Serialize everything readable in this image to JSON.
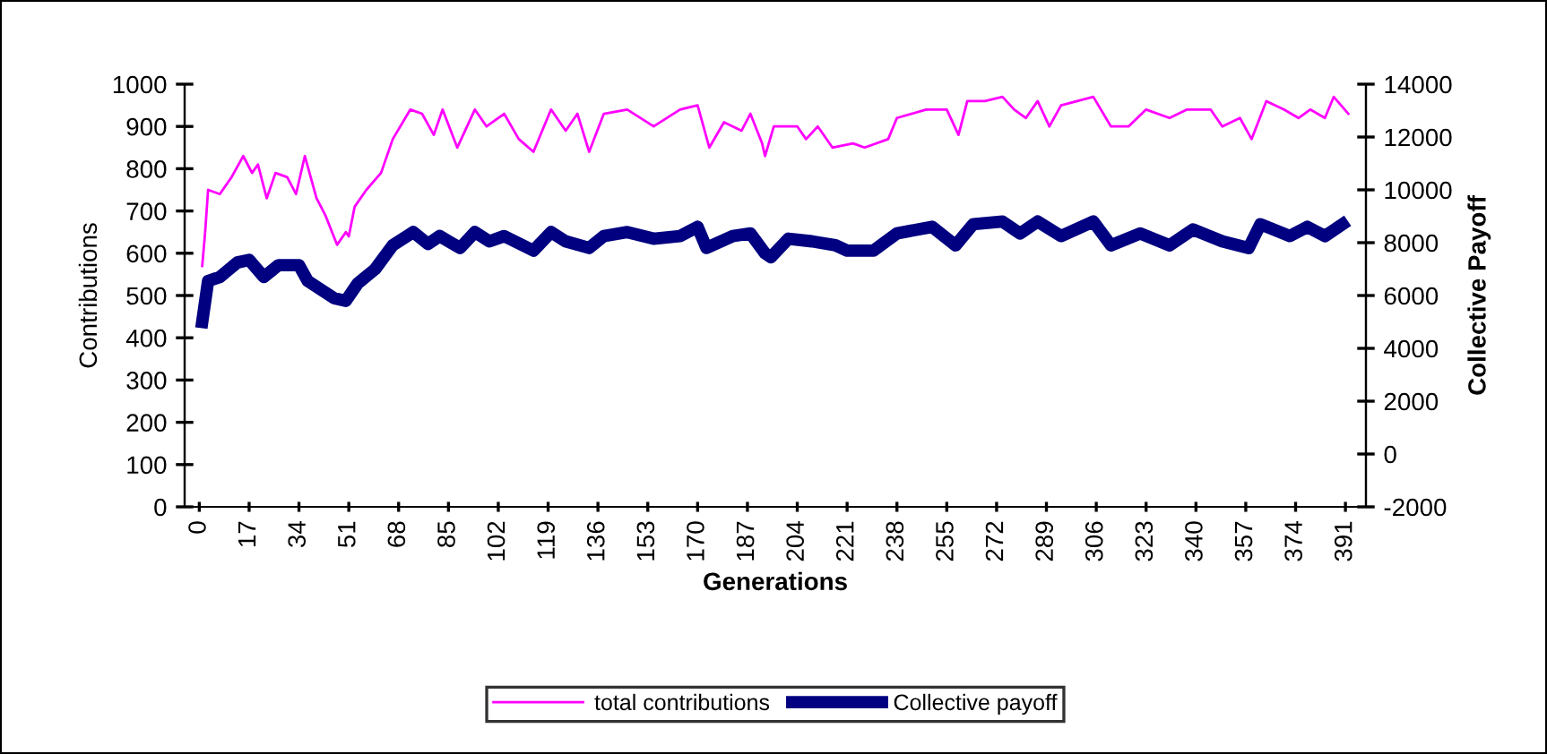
{
  "chart_data": {
    "type": "line",
    "xlabel": "Generations",
    "ylabel": "Contributions",
    "y2label": "Collective Payoff",
    "xlim": [
      -5,
      398
    ],
    "xticks": [
      0,
      17,
      34,
      51,
      68,
      85,
      102,
      119,
      136,
      153,
      170,
      187,
      204,
      221,
      238,
      255,
      272,
      289,
      306,
      323,
      340,
      357,
      374,
      391
    ],
    "ylim": [
      0,
      1000
    ],
    "yticks": [
      0,
      100,
      200,
      300,
      400,
      500,
      600,
      700,
      800,
      900,
      1000
    ],
    "y2lim": [
      -2000,
      14000
    ],
    "y2ticks": [
      -2000,
      0,
      2000,
      4000,
      6000,
      8000,
      10000,
      12000,
      14000
    ],
    "grid": false,
    "legend": "bottom",
    "marker": "none",
    "line_style": "solid",
    "series": [
      {
        "name": "total contributions",
        "color": "#ff00ff",
        "x": [
          1,
          2,
          3,
          7,
          11,
          15,
          18,
          20,
          23,
          26,
          30,
          33,
          36,
          40,
          43,
          47,
          50,
          51,
          53,
          57,
          62,
          66,
          72,
          76,
          80,
          83,
          88,
          94,
          98,
          104,
          109,
          114,
          120,
          125,
          129,
          133,
          138,
          146,
          155,
          164,
          170,
          174,
          179,
          185,
          188,
          192,
          193,
          196,
          204,
          207,
          211,
          216,
          223,
          227,
          235,
          238,
          248,
          255,
          259,
          262,
          268,
          274,
          278,
          282,
          286,
          290,
          294,
          305,
          311,
          317,
          323,
          331,
          337,
          345,
          349,
          355,
          359,
          364,
          370,
          375,
          379,
          384,
          387,
          392
        ],
        "values": [
          570,
          650,
          750,
          740,
          780,
          830,
          790,
          810,
          730,
          790,
          780,
          740,
          830,
          730,
          690,
          620,
          650,
          640,
          710,
          750,
          790,
          870,
          940,
          930,
          880,
          940,
          850,
          940,
          900,
          930,
          870,
          840,
          940,
          890,
          930,
          840,
          930,
          940,
          900,
          940,
          950,
          850,
          910,
          890,
          930,
          860,
          830,
          900,
          900,
          870,
          900,
          850,
          860,
          850,
          870,
          920,
          940,
          940,
          880,
          960,
          960,
          970,
          940,
          920,
          960,
          900,
          950,
          970,
          900,
          900,
          940,
          920,
          940,
          940,
          900,
          920,
          870,
          960,
          940,
          920,
          940,
          920,
          970,
          930
        ]
      },
      {
        "name": "Collective payoff",
        "color": "#000080",
        "axis": "y2",
        "x": [
          1,
          3,
          7,
          13,
          17,
          22,
          27,
          34,
          37,
          46,
          50,
          54,
          60,
          66,
          73,
          78,
          82,
          89,
          94,
          99,
          104,
          114,
          120,
          125,
          133,
          138,
          146,
          155,
          164,
          170,
          173,
          182,
          188,
          193,
          195,
          201,
          209,
          217,
          221,
          230,
          238,
          250,
          258,
          264,
          274,
          280,
          286,
          294,
          305,
          311,
          321,
          331,
          339,
          349,
          358,
          362,
          372,
          378,
          384,
          390
        ],
        "values": [
          5000,
          6550,
          6700,
          7250,
          7350,
          6700,
          7150,
          7150,
          6550,
          5900,
          5800,
          6450,
          7000,
          7900,
          8400,
          7950,
          8250,
          7800,
          8400,
          8050,
          8250,
          7700,
          8400,
          8050,
          7800,
          8250,
          8400,
          8150,
          8250,
          8600,
          7800,
          8250,
          8350,
          7600,
          7450,
          8150,
          8050,
          7900,
          7700,
          7700,
          8350,
          8600,
          7900,
          8700,
          8800,
          8350,
          8800,
          8250,
          8800,
          7900,
          8350,
          7900,
          8500,
          8050,
          7800,
          8700,
          8250,
          8600,
          8250,
          8700
        ]
      }
    ]
  }
}
